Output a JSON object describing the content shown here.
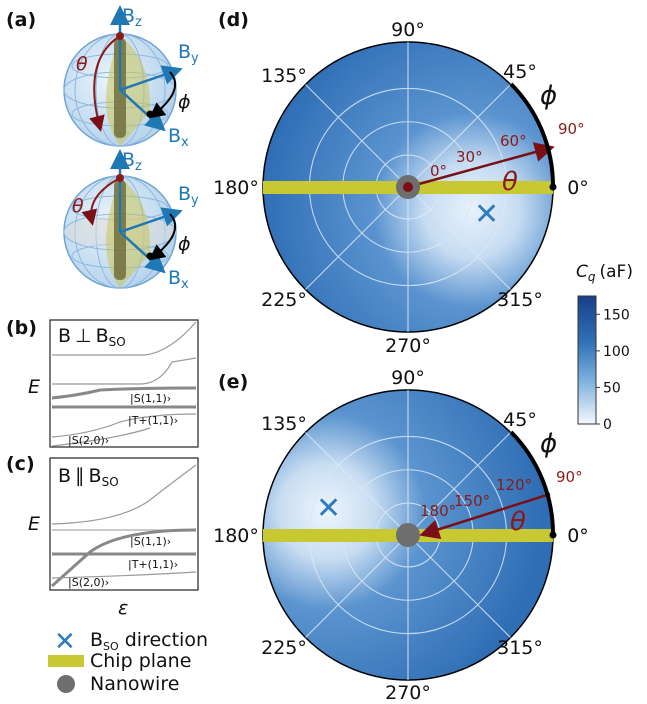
{
  "panels": {
    "a": "(a)",
    "b": "(b)",
    "c": "(c)",
    "d": "(d)",
    "e": "(e)"
  },
  "sphere": {
    "bz": "B",
    "bz_sub": "z",
    "by": "B",
    "by_sub": "y",
    "bx": "B",
    "bx_sub": "x",
    "theta": "θ",
    "phi": "ϕ"
  },
  "energy_b": {
    "title_B": "B",
    "title_rel": "⊥",
    "title_BSO": "B",
    "title_sub": "SO",
    "ylabel": "E",
    "state_s11": "|S(1,1)›",
    "state_t11": "|T+(1,1)›",
    "state_s20": "|S(2,0)›"
  },
  "energy_c": {
    "title_B": "B",
    "title_rel": "∥",
    "title_BSO": "B",
    "title_sub": "SO",
    "ylabel": "E",
    "state_s11": "|S(1,1)›",
    "state_t11": "|T+(1,1)›",
    "state_s20": "|S(2,0)›",
    "xlabel": "ε"
  },
  "polar_d": {
    "angles": [
      "90°",
      "45°",
      "0°",
      "315°",
      "270°",
      "225°",
      "180°",
      "135°"
    ],
    "theta_ticks": [
      "0°",
      "30°",
      "60°",
      "90°"
    ],
    "theta": "θ",
    "phi": "ϕ"
  },
  "polar_e": {
    "angles": [
      "90°",
      "45°",
      "0°",
      "315°",
      "270°",
      "225°",
      "180°",
      "135°"
    ],
    "theta_ticks": [
      "180°",
      "150°",
      "120°",
      "90°"
    ],
    "theta": "θ",
    "phi": "ϕ"
  },
  "colorbar": {
    "label": "C",
    "label_sub": "q",
    "unit": "(aF)",
    "ticks": [
      "150",
      "100",
      "50",
      "0"
    ],
    "cmax": 175,
    "tick_values": [
      150,
      100,
      50,
      0
    ],
    "color_top": "#1a3f8a",
    "color_bottom": "#f4f8fe"
  },
  "legend": {
    "bso": "B",
    "bso_sub": "SO",
    "bso_suffix": " direction",
    "chip": "Chip plane",
    "nanowire": "Nanowire"
  },
  "colors": {
    "polar_fill": "#4a86c8",
    "chip": "#c8c832",
    "nanowire": "#6e6e6e",
    "theta_arrow": "#7a1016",
    "bso_marker": "#2f7bbf"
  }
}
